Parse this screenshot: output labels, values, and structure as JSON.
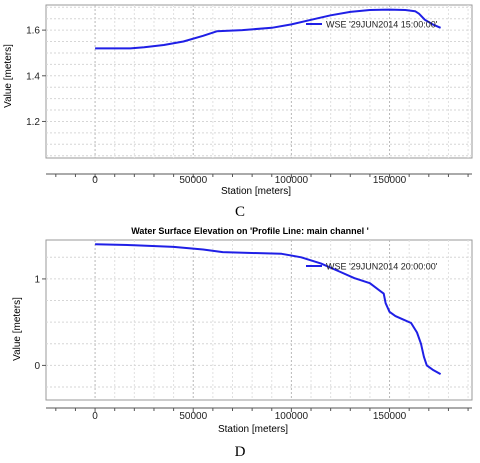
{
  "chart_data": [
    {
      "type": "line",
      "panel_label": "C",
      "title": "",
      "xlabel": "Station [meters]",
      "ylabel": "Value [meters]",
      "xlim": [
        -25000,
        192000
      ],
      "ylim": [
        1.04,
        1.71
      ],
      "x_ticks": [
        0,
        50000,
        100000,
        150000
      ],
      "y_ticks": [
        1.2,
        1.4,
        1.6
      ],
      "grid": true,
      "legend_position": "top-right",
      "line_color": "#1f1fe6",
      "series": [
        {
          "name": "WSE '29JUN2014 15:00:00'",
          "x": [
            0,
            18000,
            25000,
            35000,
            45000,
            55000,
            62000,
            75000,
            90000,
            100000,
            110000,
            120000,
            130000,
            140000,
            150000,
            158000,
            163000,
            165000,
            168000,
            172000,
            176000
          ],
          "y": [
            1.52,
            1.52,
            1.525,
            1.535,
            1.55,
            1.575,
            1.595,
            1.6,
            1.61,
            1.625,
            1.645,
            1.665,
            1.68,
            1.688,
            1.69,
            1.688,
            1.683,
            1.672,
            1.645,
            1.625,
            1.61
          ]
        }
      ]
    },
    {
      "type": "line",
      "panel_label": "D",
      "title": "Water Surface Elevation on 'Profile Line: main channel '",
      "xlabel": "Station [meters]",
      "ylabel": "Value [meters]",
      "xlim": [
        -25000,
        192000
      ],
      "ylim": [
        -0.4,
        1.45
      ],
      "x_ticks": [
        0,
        50000,
        100000,
        150000
      ],
      "y_ticks": [
        0,
        1
      ],
      "grid": true,
      "legend_position": "top-right",
      "line_color": "#1f1fe6",
      "series": [
        {
          "name": "WSE '29JUN2014 20:00:00'",
          "x": [
            0,
            20000,
            40000,
            55000,
            65000,
            80000,
            95000,
            105000,
            115000,
            125000,
            132000,
            140000,
            147000,
            148000,
            150000,
            153000,
            157000,
            161000,
            164000,
            166000,
            167500,
            169000,
            172000,
            176000
          ],
          "y": [
            1.4,
            1.39,
            1.37,
            1.34,
            1.31,
            1.3,
            1.29,
            1.25,
            1.18,
            1.08,
            1.01,
            0.95,
            0.83,
            0.72,
            0.62,
            0.57,
            0.53,
            0.49,
            0.38,
            0.25,
            0.1,
            0.0,
            -0.05,
            -0.1
          ]
        }
      ]
    }
  ]
}
